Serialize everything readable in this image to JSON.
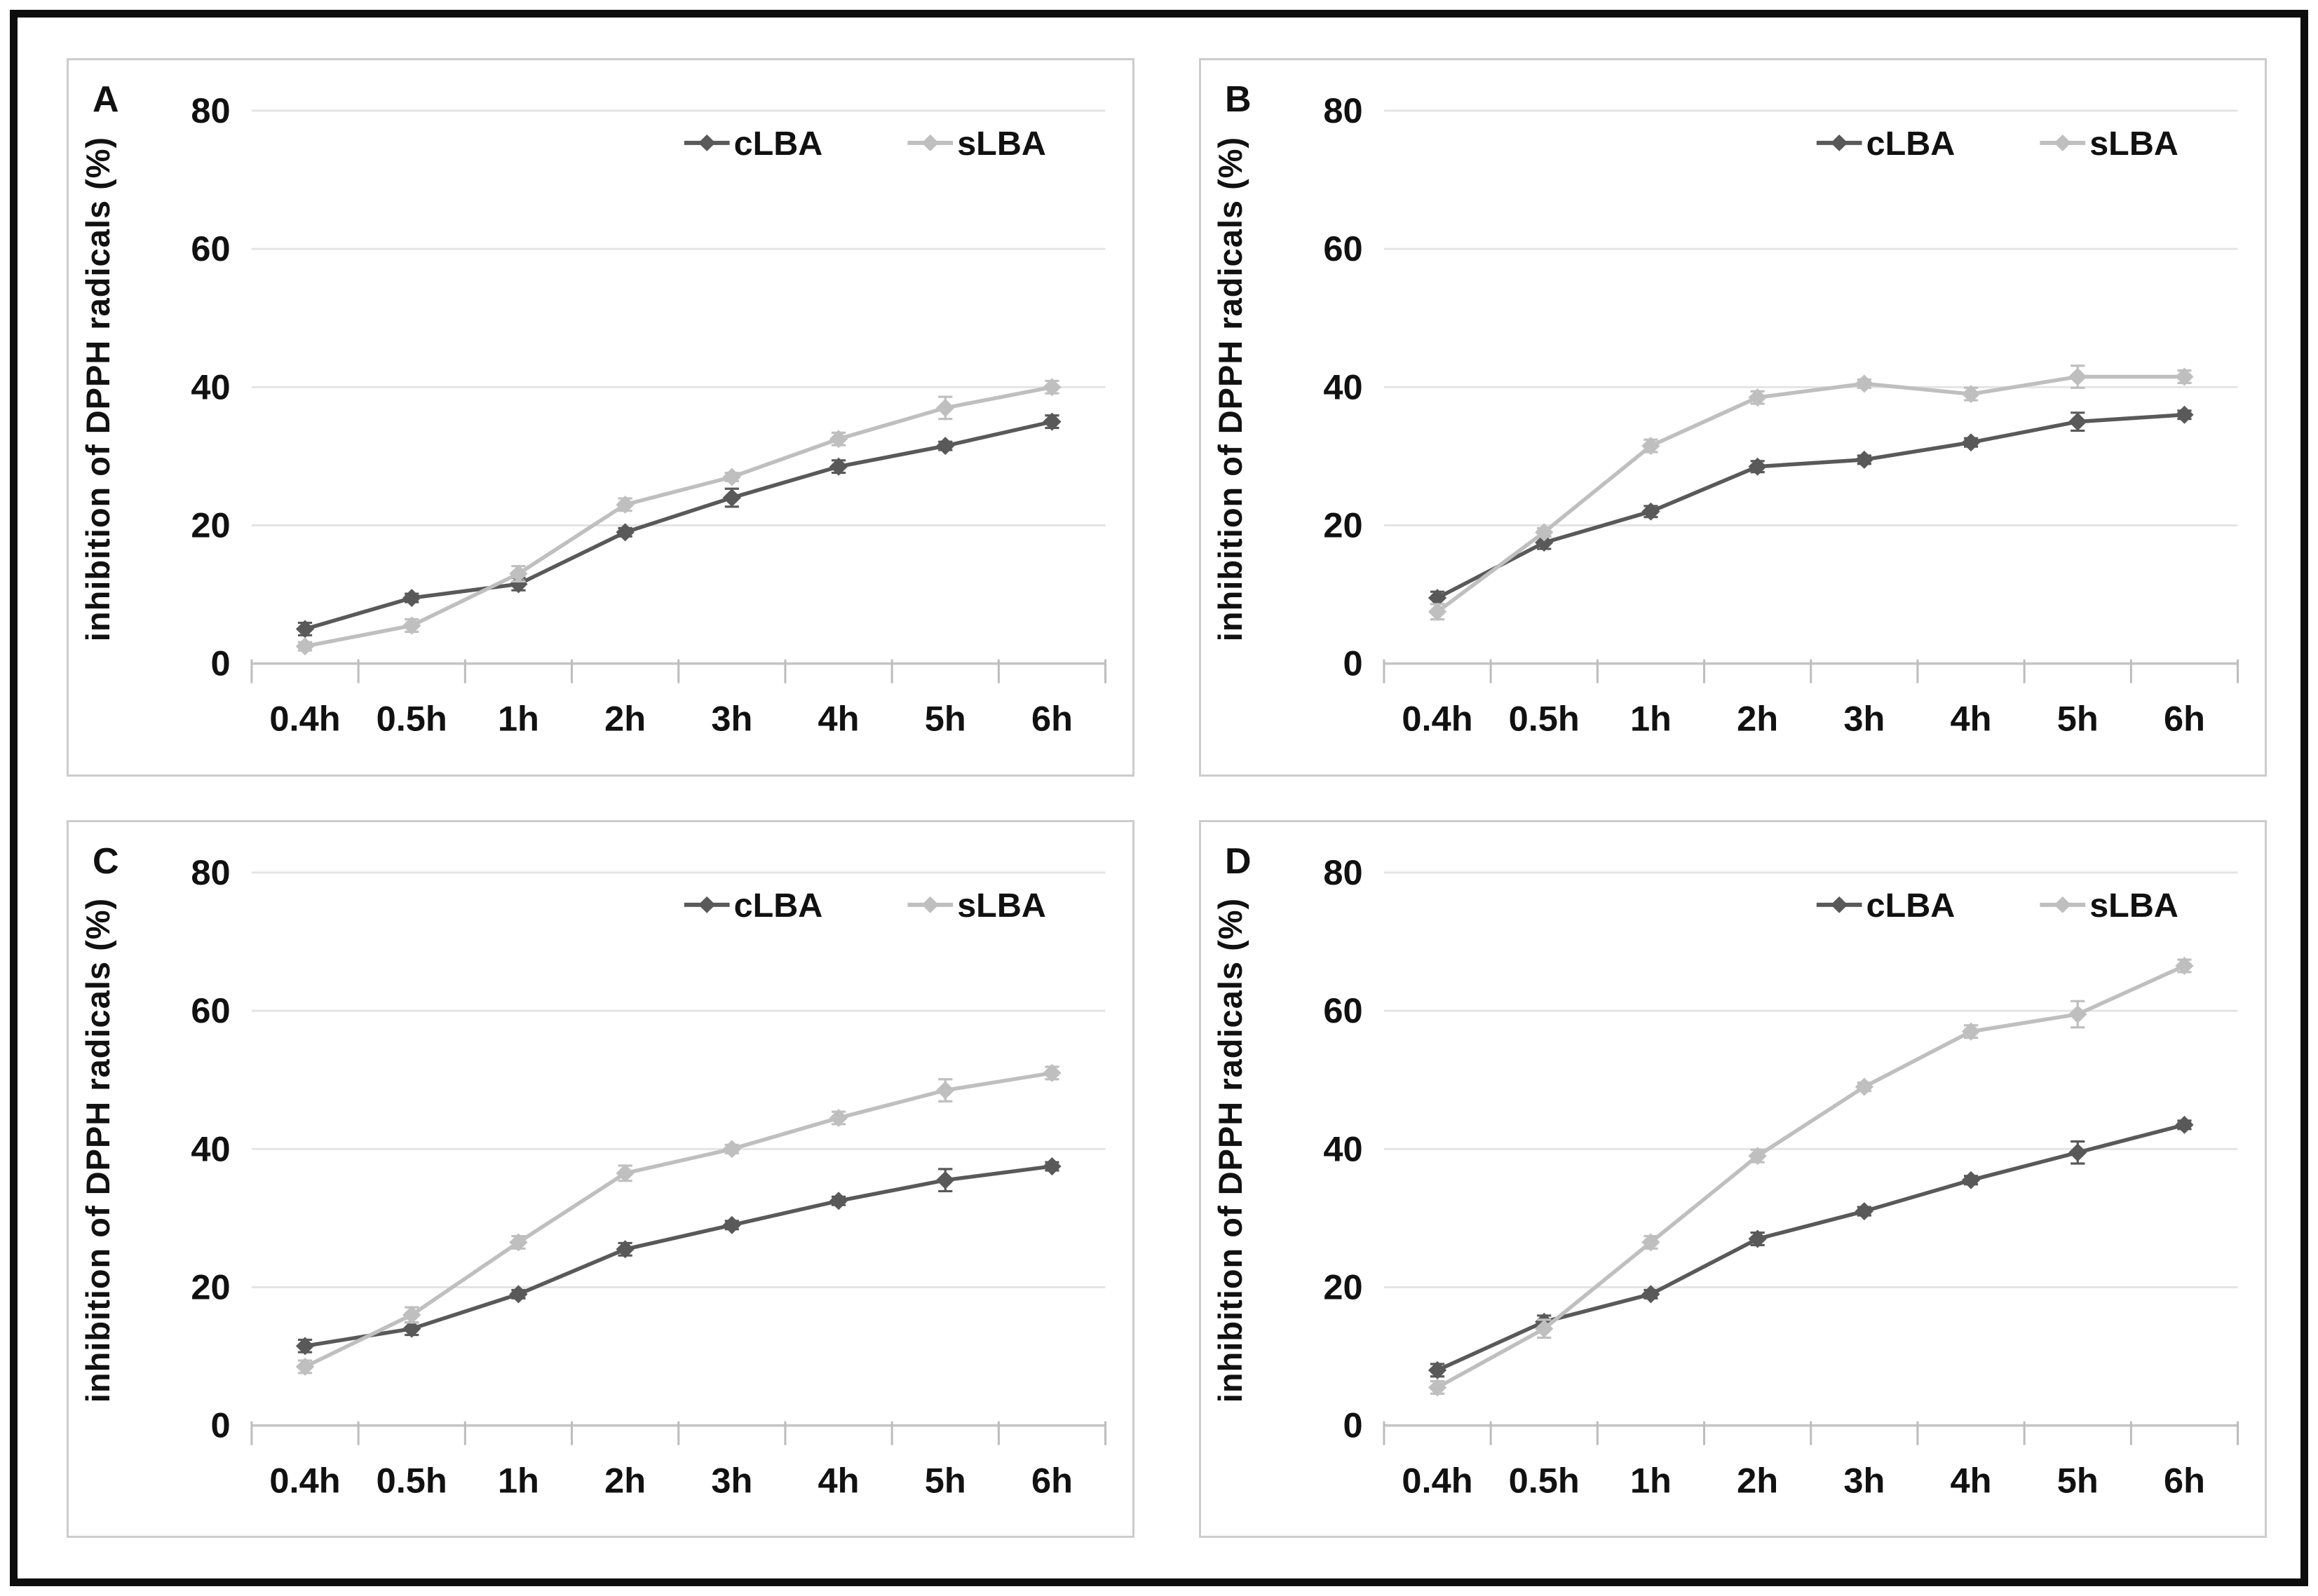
{
  "figure": {
    "panel_letters": [
      "A",
      "B",
      "C",
      "D"
    ],
    "y_axis_title": "inhibition of DPPH radicals (%)",
    "legend_labels": [
      "cLBA",
      "sLBA"
    ],
    "colors": {
      "cLBA": "#595959",
      "sLBA": "#bfbfbf",
      "grid": "#e4e4e4",
      "axis": "#c4c4c4",
      "panel_border": "#cccccc",
      "outer_border": "#0d0d0d"
    }
  },
  "chart_data": [
    {
      "panel": "A",
      "type": "line",
      "title": "",
      "xlabel": "",
      "ylabel": "inhibition of DPPH radicals (%)",
      "ylim": [
        0,
        80
      ],
      "yticks": [
        0,
        20,
        40,
        60,
        80
      ],
      "categories": [
        "0.4h",
        "0.5h",
        "1h",
        "2h",
        "3h",
        "4h",
        "5h",
        "6h"
      ],
      "grid": "horizontal",
      "legend_position": "top-right",
      "series": [
        {
          "name": "cLBA",
          "color": "#595959",
          "marker": "diamond",
          "values": [
            5,
            9.5,
            11.5,
            19,
            24,
            28.5,
            31.5,
            35
          ],
          "errors": [
            0.9,
            0.6,
            0.9,
            0.6,
            1.3,
            0.9,
            0.6,
            0.9
          ]
        },
        {
          "name": "sLBA",
          "color": "#bfbfbf",
          "marker": "diamond",
          "values": [
            2.5,
            5.5,
            13,
            23,
            27,
            32.5,
            37,
            40
          ],
          "errors": [
            0.6,
            0.9,
            1.1,
            0.9,
            0.6,
            0.9,
            1.6,
            0.9
          ]
        }
      ]
    },
    {
      "panel": "B",
      "type": "line",
      "title": "",
      "xlabel": "",
      "ylabel": "inhibition of DPPH radicals (%)",
      "ylim": [
        0,
        80
      ],
      "yticks": [
        0,
        20,
        40,
        60,
        80
      ],
      "categories": [
        "0.4h",
        "0.5h",
        "1h",
        "2h",
        "3h",
        "4h",
        "5h",
        "6h"
      ],
      "grid": "horizontal",
      "legend_position": "top-right",
      "series": [
        {
          "name": "cLBA",
          "color": "#595959",
          "marker": "diamond",
          "values": [
            9.5,
            17.5,
            22,
            28.5,
            29.5,
            32,
            35,
            36
          ],
          "errors": [
            0.9,
            0.9,
            0.8,
            0.8,
            0.6,
            0.6,
            1.3,
            0.6
          ]
        },
        {
          "name": "sLBA",
          "color": "#bfbfbf",
          "marker": "diamond",
          "values": [
            7.5,
            19,
            31.5,
            38.5,
            40.5,
            39,
            41.5,
            41.5
          ],
          "errors": [
            1.1,
            0.6,
            0.9,
            0.9,
            0.6,
            0.9,
            1.6,
            0.9
          ]
        }
      ]
    },
    {
      "panel": "C",
      "type": "line",
      "title": "",
      "xlabel": "",
      "ylabel": "inhibition of DPPH radicals (%)",
      "ylim": [
        0,
        80
      ],
      "yticks": [
        0,
        20,
        40,
        60,
        80
      ],
      "categories": [
        "0.4h",
        "0.5h",
        "1h",
        "2h",
        "3h",
        "4h",
        "5h",
        "6h"
      ],
      "grid": "horizontal",
      "legend_position": "top-right",
      "series": [
        {
          "name": "cLBA",
          "color": "#595959",
          "marker": "diamond",
          "values": [
            11.5,
            14,
            19,
            25.5,
            29,
            32.5,
            35.5,
            37.5
          ],
          "errors": [
            0.9,
            0.9,
            0.6,
            0.9,
            0.6,
            0.6,
            1.6,
            0.6
          ]
        },
        {
          "name": "sLBA",
          "color": "#bfbfbf",
          "marker": "diamond",
          "values": [
            8.5,
            16,
            26.5,
            36.5,
            40,
            44.5,
            48.5,
            51
          ],
          "errors": [
            0.9,
            1.1,
            0.9,
            1.1,
            0.6,
            0.9,
            1.6,
            0.9
          ]
        }
      ]
    },
    {
      "panel": "D",
      "type": "line",
      "title": "",
      "xlabel": "",
      "ylabel": "inhibition of DPPH radicals (%)",
      "ylim": [
        0,
        80
      ],
      "yticks": [
        0,
        20,
        40,
        60,
        80
      ],
      "categories": [
        "0.4h",
        "0.5h",
        "1h",
        "2h",
        "3h",
        "4h",
        "5h",
        "6h"
      ],
      "grid": "horizontal",
      "legend_position": "top-right",
      "series": [
        {
          "name": "cLBA",
          "color": "#595959",
          "marker": "diamond",
          "values": [
            8,
            15,
            19,
            27,
            31,
            35.5,
            39.5,
            43.5
          ],
          "errors": [
            0.9,
            0.9,
            0.6,
            0.9,
            0.6,
            0.6,
            1.6,
            0.6
          ]
        },
        {
          "name": "sLBA",
          "color": "#bfbfbf",
          "marker": "diamond",
          "values": [
            5.5,
            14,
            26.5,
            39,
            49,
            57,
            59.5,
            66.5
          ],
          "errors": [
            0.9,
            1.3,
            0.9,
            0.9,
            0.6,
            0.9,
            1.9,
            0.9
          ]
        }
      ]
    }
  ]
}
